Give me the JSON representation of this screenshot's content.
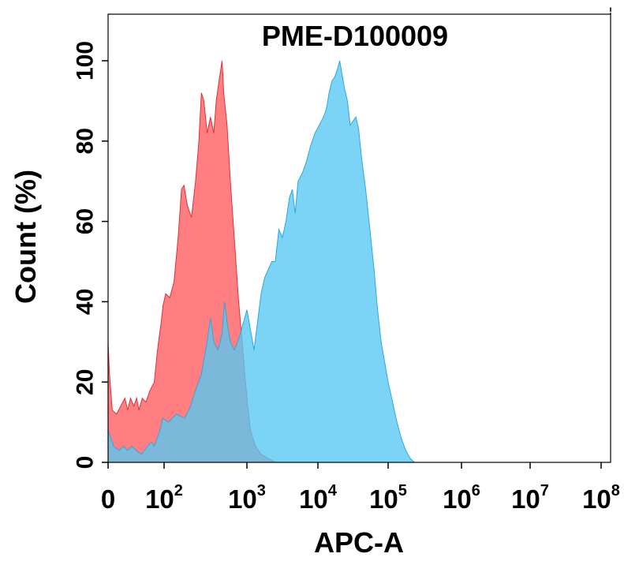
{
  "chart_data": {
    "type": "area",
    "title": "PME-D100009",
    "xlabel": "APC-A",
    "ylabel": "Count  (%)",
    "x_scale": "biexponential (linear near 0, log10 above ~10^2)",
    "xlim_log10": [
      0,
      8
    ],
    "ylim": [
      0,
      110
    ],
    "xticks": [
      {
        "base": "0",
        "exp": ""
      },
      {
        "base": "10",
        "exp": "2"
      },
      {
        "base": "10",
        "exp": "3"
      },
      {
        "base": "10",
        "exp": "4"
      },
      {
        "base": "10",
        "exp": "5"
      },
      {
        "base": "10",
        "exp": "6"
      },
      {
        "base": "10",
        "exp": "7"
      },
      {
        "base": "10",
        "exp": "8"
      }
    ],
    "xtick_positions_log10": [
      0,
      2,
      3,
      4,
      5,
      6,
      7,
      8
    ],
    "yticks": [
      0,
      20,
      40,
      60,
      80,
      100
    ],
    "corner_mark": "!",
    "grid": false,
    "legend": "none",
    "series": [
      {
        "color": "#ff5a5f",
        "fill_opacity": 0.78,
        "stroke": "#e0303a",
        "points": [
          [
            0.0,
            30
          ],
          [
            0.05,
            22
          ],
          [
            0.15,
            13
          ],
          [
            0.3,
            12
          ],
          [
            0.45,
            14
          ],
          [
            0.6,
            16
          ],
          [
            0.7,
            13
          ],
          [
            0.8,
            16
          ],
          [
            0.92,
            14
          ],
          [
            1.02,
            16
          ],
          [
            1.1,
            13
          ],
          [
            1.22,
            16
          ],
          [
            1.35,
            15
          ],
          [
            1.5,
            18
          ],
          [
            1.65,
            20
          ],
          [
            1.75,
            27
          ],
          [
            1.82,
            31
          ],
          [
            1.9,
            35
          ],
          [
            1.96,
            39
          ],
          [
            2.02,
            42
          ],
          [
            2.07,
            41
          ],
          [
            2.12,
            45
          ],
          [
            2.17,
            56
          ],
          [
            2.21,
            68
          ],
          [
            2.24,
            69
          ],
          [
            2.28,
            64
          ],
          [
            2.33,
            61
          ],
          [
            2.38,
            70
          ],
          [
            2.42,
            80
          ],
          [
            2.45,
            92
          ],
          [
            2.48,
            90
          ],
          [
            2.52,
            82
          ],
          [
            2.56,
            86
          ],
          [
            2.6,
            82
          ],
          [
            2.63,
            90
          ],
          [
            2.67,
            96
          ],
          [
            2.7,
            100
          ],
          [
            2.72,
            92
          ],
          [
            2.76,
            84
          ],
          [
            2.8,
            70
          ],
          [
            2.85,
            55
          ],
          [
            2.9,
            40
          ],
          [
            2.95,
            28
          ],
          [
            3.0,
            16
          ],
          [
            3.05,
            8
          ],
          [
            3.12,
            4
          ],
          [
            3.2,
            2
          ],
          [
            3.3,
            1
          ],
          [
            3.4,
            0
          ]
        ]
      },
      {
        "color": "#56c8f2",
        "fill_opacity": 0.78,
        "stroke": "#2aa9dc",
        "points": [
          [
            0.0,
            8
          ],
          [
            0.2,
            4
          ],
          [
            0.4,
            3
          ],
          [
            0.55,
            4
          ],
          [
            0.7,
            3
          ],
          [
            0.85,
            4
          ],
          [
            1.0,
            3
          ],
          [
            1.2,
            2
          ],
          [
            1.4,
            4
          ],
          [
            1.55,
            5
          ],
          [
            1.65,
            4
          ],
          [
            1.75,
            6
          ],
          [
            1.85,
            8
          ],
          [
            1.95,
            11
          ],
          [
            2.05,
            10
          ],
          [
            2.15,
            12
          ],
          [
            2.25,
            11
          ],
          [
            2.32,
            14
          ],
          [
            2.38,
            18
          ],
          [
            2.45,
            22
          ],
          [
            2.52,
            30
          ],
          [
            2.56,
            36
          ],
          [
            2.6,
            30
          ],
          [
            2.65,
            28
          ],
          [
            2.7,
            32
          ],
          [
            2.73,
            40
          ],
          [
            2.76,
            35
          ],
          [
            2.8,
            30
          ],
          [
            2.85,
            28
          ],
          [
            2.92,
            32
          ],
          [
            3.0,
            38
          ],
          [
            3.05,
            33
          ],
          [
            3.1,
            28
          ],
          [
            3.15,
            35
          ],
          [
            3.2,
            42
          ],
          [
            3.25,
            46
          ],
          [
            3.3,
            48
          ],
          [
            3.35,
            50
          ],
          [
            3.4,
            50
          ],
          [
            3.45,
            58
          ],
          [
            3.5,
            56
          ],
          [
            3.55,
            60
          ],
          [
            3.6,
            66
          ],
          [
            3.64,
            68
          ],
          [
            3.68,
            62
          ],
          [
            3.72,
            70
          ],
          [
            3.78,
            72
          ],
          [
            3.84,
            75
          ],
          [
            3.9,
            79
          ],
          [
            3.96,
            82
          ],
          [
            4.02,
            84
          ],
          [
            4.08,
            86
          ],
          [
            4.12,
            88
          ],
          [
            4.16,
            92
          ],
          [
            4.2,
            95
          ],
          [
            4.24,
            96
          ],
          [
            4.28,
            98
          ],
          [
            4.31,
            100
          ],
          [
            4.34,
            97
          ],
          [
            4.38,
            93
          ],
          [
            4.42,
            90
          ],
          [
            4.46,
            84
          ],
          [
            4.5,
            85
          ],
          [
            4.54,
            86
          ],
          [
            4.58,
            83
          ],
          [
            4.62,
            76
          ],
          [
            4.68,
            68
          ],
          [
            4.74,
            58
          ],
          [
            4.8,
            48
          ],
          [
            4.85,
            38
          ],
          [
            4.9,
            30
          ],
          [
            4.95,
            25
          ],
          [
            5.0,
            20
          ],
          [
            5.06,
            15
          ],
          [
            5.12,
            10
          ],
          [
            5.18,
            6
          ],
          [
            5.24,
            3
          ],
          [
            5.3,
            1
          ],
          [
            5.36,
            0
          ]
        ]
      }
    ]
  }
}
